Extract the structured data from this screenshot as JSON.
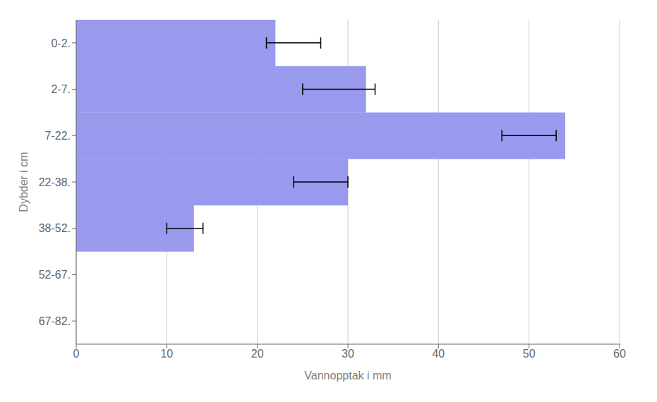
{
  "chart_data": {
    "type": "bar",
    "orientation": "horizontal",
    "categories": [
      "0-2.",
      "2-7.",
      "7-22.",
      "22-38.",
      "38-52.",
      "52-67.",
      "67-82."
    ],
    "values": [
      22,
      32,
      54,
      30,
      13,
      0,
      0
    ],
    "error_centers": [
      24,
      29,
      50,
      27,
      12,
      0,
      0
    ],
    "errors": [
      3,
      4,
      3,
      3,
      2,
      0,
      0
    ],
    "color": "#9999ee",
    "xlabel": "Vannopptak i mm",
    "ylabel": "Dybder i cm",
    "xlim": [
      0,
      60
    ],
    "xticks": [
      0,
      10,
      20,
      30,
      40,
      50,
      60
    ],
    "grid": true
  }
}
